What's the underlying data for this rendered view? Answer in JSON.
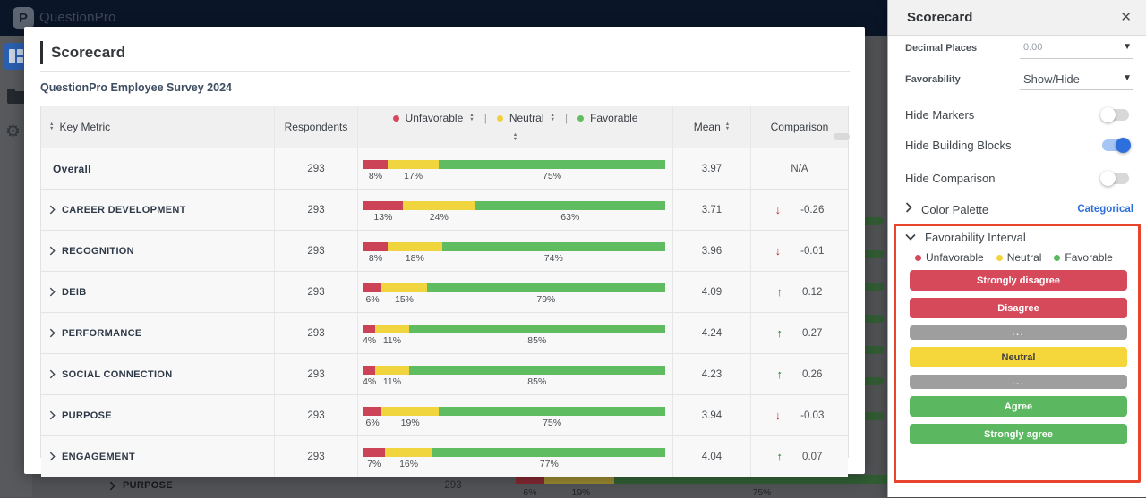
{
  "navbar": {
    "brand": "QuestionPro"
  },
  "modal": {
    "title": "Scorecard",
    "survey_name": "QuestionPro Employee Survey 2024",
    "table": {
      "headers": {
        "key_metric": "Key Metric",
        "respondents": "Respondents",
        "mean": "Mean",
        "comparison": "Comparison"
      },
      "legend": {
        "unfavorable": "Unfavorable",
        "neutral": "Neutral",
        "favorable": "Favorable",
        "separator": "|"
      },
      "rows": [
        {
          "label": "Overall",
          "expandable": false,
          "respondents": "293",
          "unfavorable": 8,
          "neutral": 17,
          "favorable": 75,
          "mean": "3.97",
          "direction": "none",
          "comparison": "N/A"
        },
        {
          "label": "CAREER DEVELOPMENT",
          "expandable": true,
          "respondents": "293",
          "unfavorable": 13,
          "neutral": 24,
          "favorable": 63,
          "mean": "3.71",
          "direction": "down",
          "comparison": "-0.26"
        },
        {
          "label": "RECOGNITION",
          "expandable": true,
          "respondents": "293",
          "unfavorable": 8,
          "neutral": 18,
          "favorable": 74,
          "mean": "3.96",
          "direction": "down",
          "comparison": "-0.01"
        },
        {
          "label": "DEIB",
          "expandable": true,
          "respondents": "293",
          "unfavorable": 6,
          "neutral": 15,
          "favorable": 79,
          "mean": "4.09",
          "direction": "up",
          "comparison": "0.12"
        },
        {
          "label": "PERFORMANCE",
          "expandable": true,
          "respondents": "293",
          "unfavorable": 4,
          "neutral": 11,
          "favorable": 85,
          "mean": "4.24",
          "direction": "up",
          "comparison": "0.27"
        },
        {
          "label": "SOCIAL CONNECTION",
          "expandable": true,
          "respondents": "293",
          "unfavorable": 4,
          "neutral": 11,
          "favorable": 85,
          "mean": "4.23",
          "direction": "up",
          "comparison": "0.26"
        },
        {
          "label": "PURPOSE",
          "expandable": true,
          "respondents": "293",
          "unfavorable": 6,
          "neutral": 19,
          "favorable": 75,
          "mean": "3.94",
          "direction": "down",
          "comparison": "-0.03"
        },
        {
          "label": "ENGAGEMENT",
          "expandable": true,
          "respondents": "293",
          "unfavorable": 7,
          "neutral": 16,
          "favorable": 77,
          "mean": "4.04",
          "direction": "up",
          "comparison": "0.07"
        }
      ]
    }
  },
  "background_page": {
    "visible_row": {
      "label": "PURPOSE",
      "respondents": "293",
      "unfavorable": 6,
      "neutral": 19,
      "favorable": 75
    }
  },
  "panel": {
    "title": "Scorecard",
    "close_icon": "✕",
    "fields": [
      {
        "label": "Decimal Places",
        "value": "0.00",
        "muted": true
      },
      {
        "label": "Favorability",
        "value": "Show/Hide",
        "muted": false
      }
    ],
    "toggles": [
      {
        "label": "Hide Markers",
        "on": false
      },
      {
        "label": "Hide Building Blocks",
        "on": true
      },
      {
        "label": "Hide Comparison",
        "on": false
      }
    ],
    "color_palette": {
      "label": "Color Palette",
      "value": "Categorical"
    },
    "favorability_interval": {
      "label": "Favorability Interval",
      "legend": [
        {
          "label": "Unfavorable",
          "color": "#d5495b"
        },
        {
          "label": "Neutral",
          "color": "#f1d53f"
        },
        {
          "label": "Favorable",
          "color": "#5cb860"
        }
      ],
      "buttons": [
        {
          "label": "Strongly disagree",
          "type": "unfavorable"
        },
        {
          "label": "Disagree",
          "type": "unfavorable"
        },
        {
          "label": "...",
          "type": "collapsed"
        },
        {
          "label": "Neutral",
          "type": "neutral"
        },
        {
          "label": "...",
          "type": "collapsed"
        },
        {
          "label": "Agree",
          "type": "favorable"
        },
        {
          "label": "Strongly agree",
          "type": "favorable"
        }
      ]
    }
  },
  "colors": {
    "unfavorable": "#cc4257",
    "neutral": "#f1d53f",
    "favorable": "#5fbc61",
    "arrow_down": "#c82f2f",
    "arrow_up": "#1d7c35",
    "accent_blue": "#2d6fdb",
    "highlight_border": "#e8432d"
  }
}
